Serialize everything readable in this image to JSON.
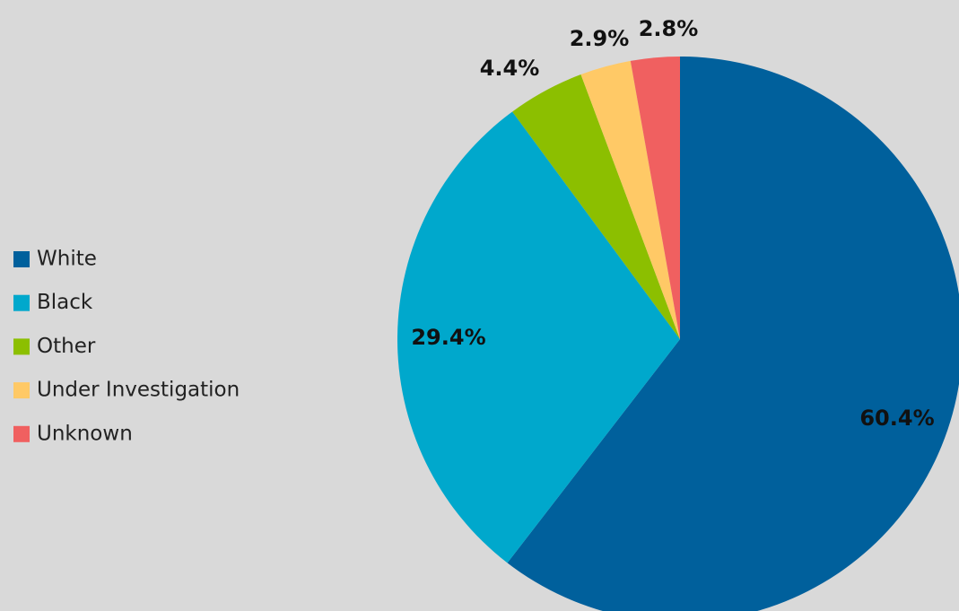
{
  "chart_data": {
    "type": "pie",
    "categories": [
      "White",
      "Black",
      "Other",
      "Under Investigation",
      "Unknown"
    ],
    "values": [
      60.4,
      29.4,
      4.4,
      2.9,
      2.8
    ],
    "value_labels": [
      "60.4%",
      "29.4%",
      "4.4%",
      "2.9%",
      "2.8%"
    ],
    "colors": [
      "#00609c",
      "#00a8cc",
      "#8cbf00",
      "#ffc966",
      "#f06060"
    ],
    "legend": "left"
  }
}
